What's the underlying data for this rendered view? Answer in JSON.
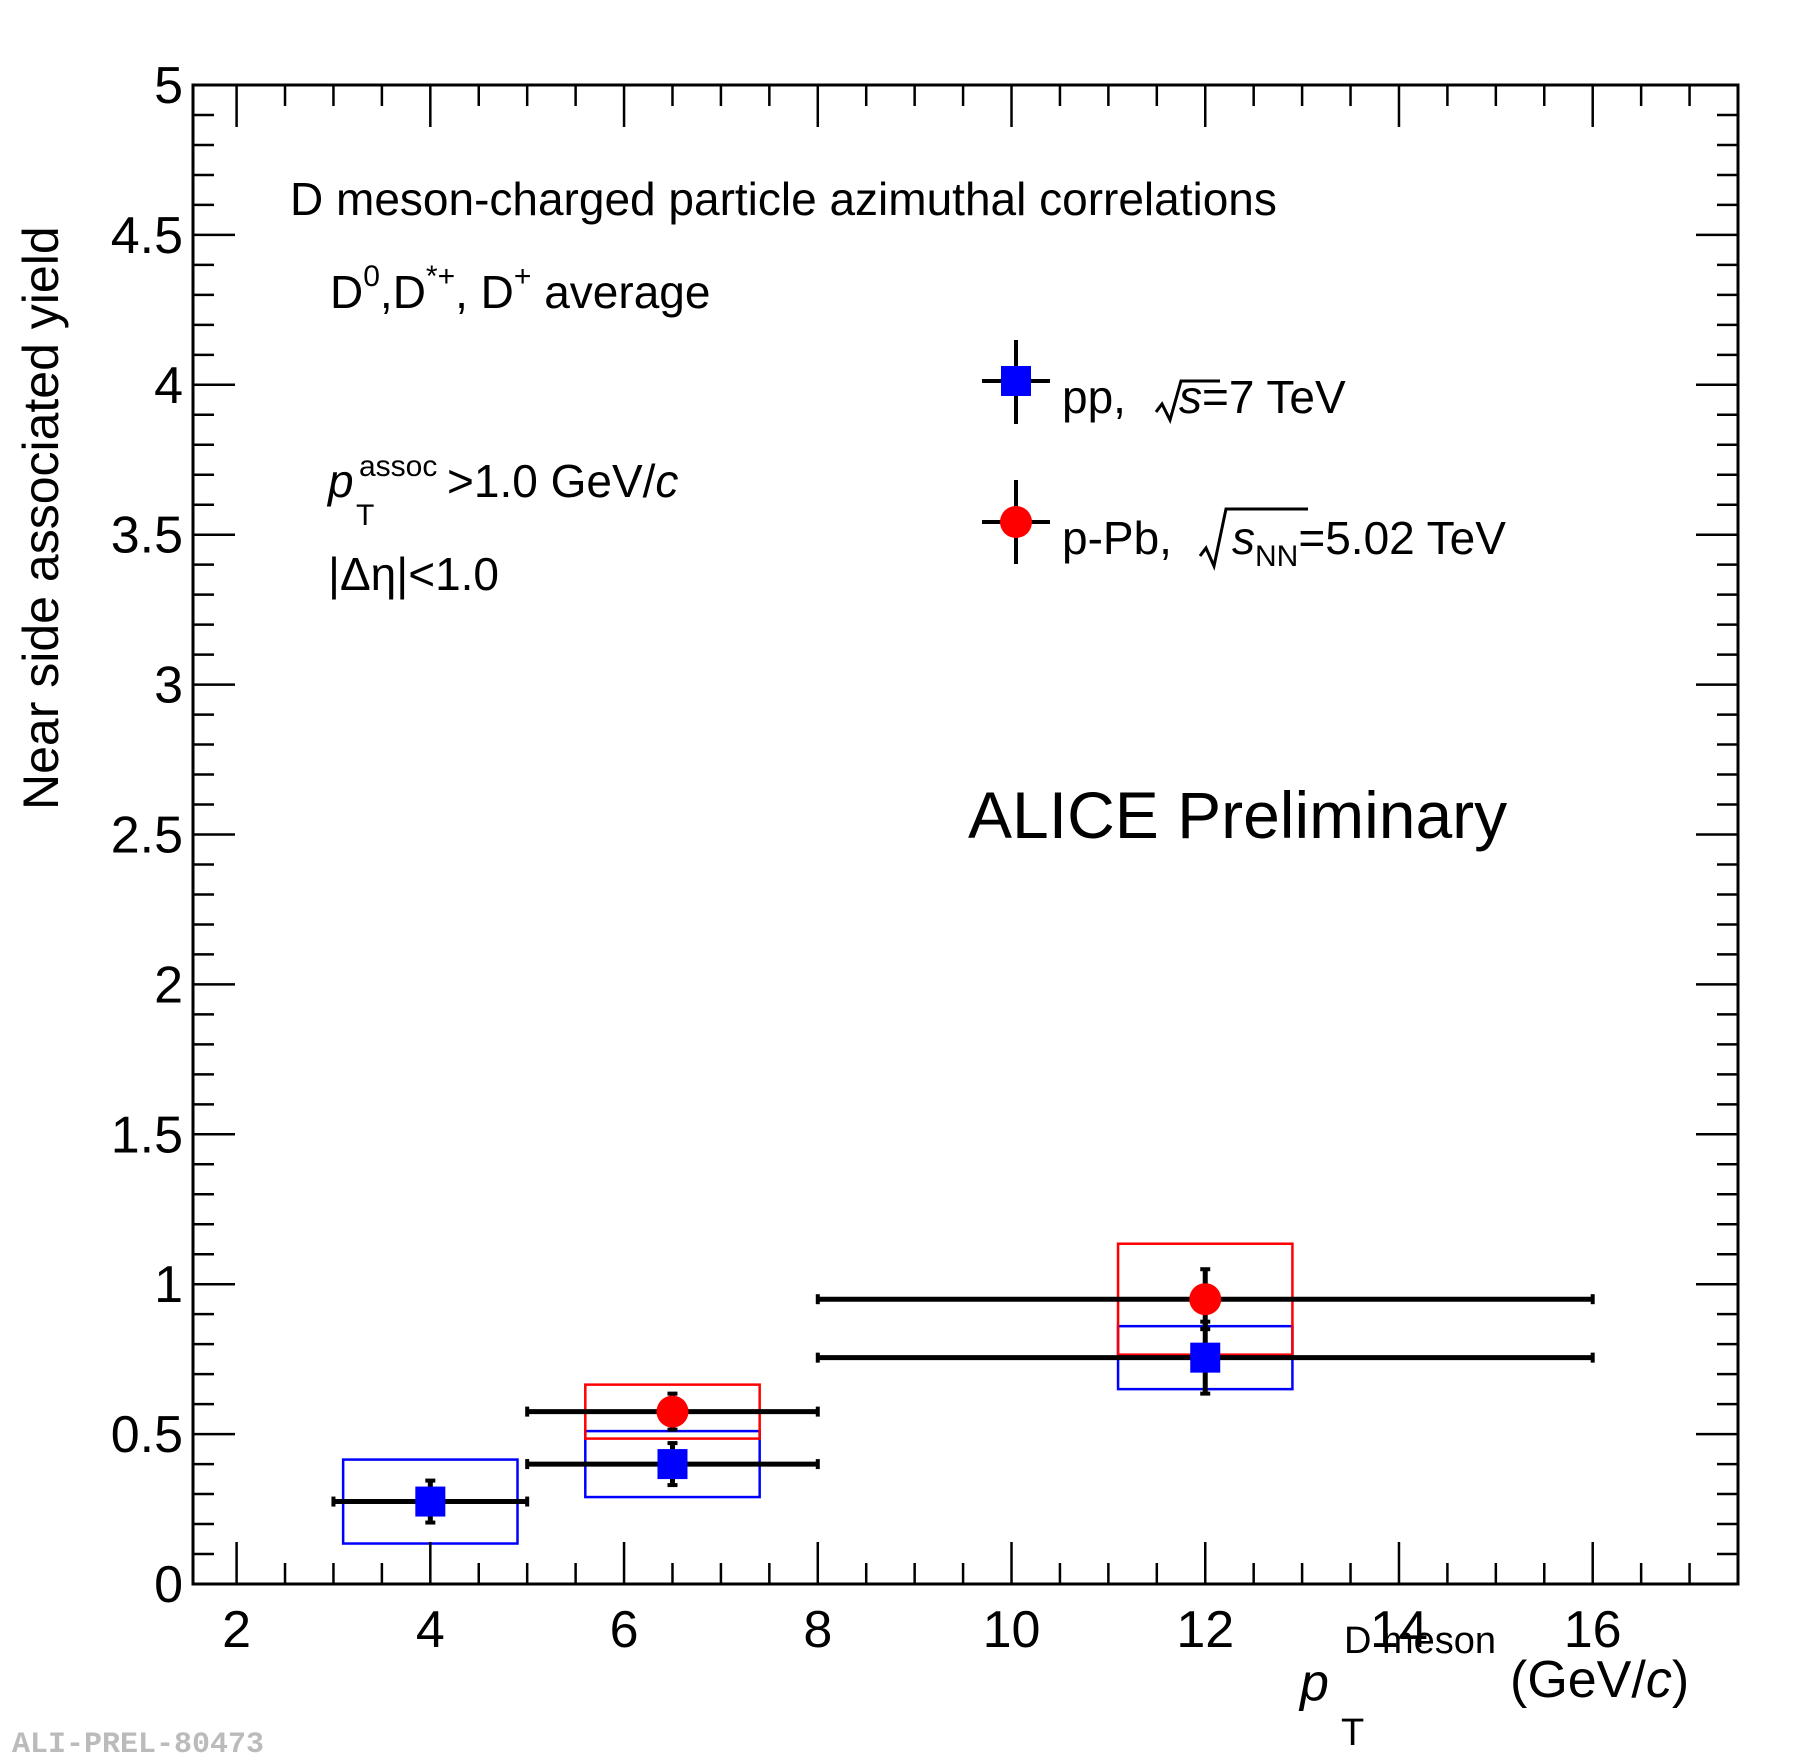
{
  "chart_data": {
    "type": "scatter",
    "title": "",
    "xlabel": {
      "main": "p",
      "sub": "T",
      "sup": "D meson",
      "unit_open": " (GeV/",
      "unit_c": "c",
      "unit_close": ")"
    },
    "ylabel": "Near side associated yield",
    "xlim": [
      1.55,
      17.5
    ],
    "ylim": [
      0,
      5
    ],
    "xticks": [
      2,
      4,
      6,
      8,
      10,
      12,
      14,
      16
    ],
    "xtick_labels": [
      "2",
      "4",
      "6",
      "8",
      "10",
      "12",
      "14",
      "16"
    ],
    "yticks": [
      0,
      0.5,
      1,
      1.5,
      2,
      2.5,
      3,
      3.5,
      4,
      4.5,
      5
    ],
    "ytick_labels": [
      "0",
      "0.5",
      "1",
      "1.5",
      "2",
      "2.5",
      "3",
      "3.5",
      "4",
      "4.5",
      "5"
    ],
    "grid": false,
    "legend_position": "top-right",
    "series": [
      {
        "name": "pp, √s=7 TeV",
        "marker": "square",
        "color": "#0000ff",
        "points": [
          {
            "x": 4.0,
            "y": 0.275,
            "xlow": 3.0,
            "xhigh": 5.0,
            "stat": 0.07,
            "sys": 0.14,
            "box_halfwidth": 0.9
          },
          {
            "x": 6.5,
            "y": 0.4,
            "xlow": 5.0,
            "xhigh": 8.0,
            "stat": 0.07,
            "sys": 0.11,
            "box_halfwidth": 0.9
          },
          {
            "x": 12.0,
            "y": 0.755,
            "xlow": 8.0,
            "xhigh": 16.0,
            "stat": 0.12,
            "sys": 0.105,
            "box_halfwidth": 0.9
          }
        ]
      },
      {
        "name": "p-Pb, √sNN=5.02 TeV",
        "marker": "circle",
        "color": "#ff0000",
        "points": [
          {
            "x": 6.5,
            "y": 0.575,
            "xlow": 5.0,
            "xhigh": 8.0,
            "stat": 0.06,
            "sys": 0.09,
            "box_halfwidth": 0.9
          },
          {
            "x": 12.0,
            "y": 0.95,
            "xlow": 8.0,
            "xhigh": 16.0,
            "stat": 0.1,
            "sys": 0.185,
            "box_halfwidth": 0.9
          }
        ]
      }
    ],
    "annotations": {
      "title_line": "D meson-charged particle azimuthal correlations",
      "species": {
        "d0": "D",
        "d0_sup": "0",
        "comma1": ",D",
        "dstar_sup": "*+",
        "comma2": ", D",
        "dplus_sup": "+",
        "rest": " average"
      },
      "pt_assoc": {
        "p": "p",
        "sub": "T",
        "sup": "assoc",
        "rest": ">1.0 GeV/",
        "c": "c"
      },
      "deta": "|Δη|<1.0",
      "preliminary": "ALICE Preliminary",
      "legend_pp": {
        "pre": "pp, ",
        "s": "s",
        "post": "=7 TeV"
      },
      "legend_ppb": {
        "pre": "p-Pb, ",
        "s": "s",
        "sub": "NN",
        "post": "=5.02 TeV"
      }
    },
    "watermark_id": "ALI-PREL-80473"
  }
}
